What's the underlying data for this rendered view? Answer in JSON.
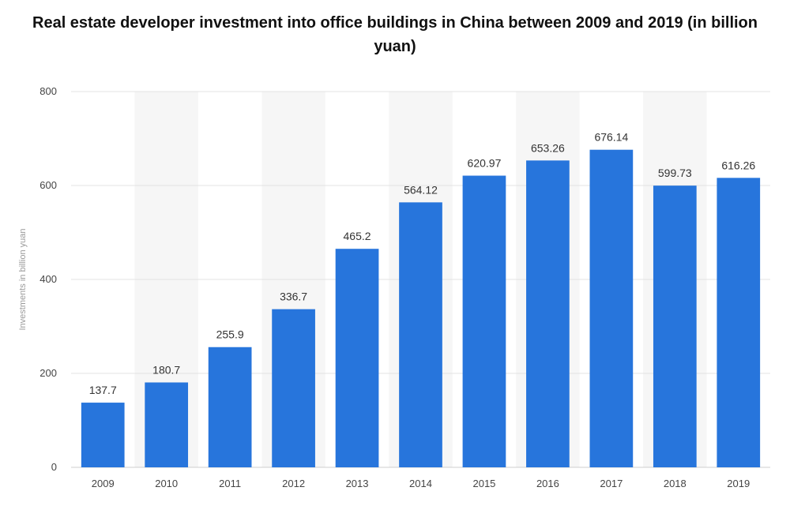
{
  "chart_data": {
    "type": "bar",
    "title": "Real estate developer investment into office buildings in China between 2009 and 2019 (in billion yuan)",
    "xlabel": "",
    "ylabel": "Investments in billion yuan",
    "categories": [
      "2009",
      "2010",
      "2011",
      "2012",
      "2013",
      "2014",
      "2015",
      "2016",
      "2017",
      "2018",
      "2019"
    ],
    "values": [
      137.7,
      180.7,
      255.9,
      336.7,
      465.2,
      564.12,
      620.97,
      653.26,
      676.14,
      599.73,
      616.26
    ],
    "data_labels": [
      "137.7",
      "180.7",
      "255.9",
      "336.7",
      "465.2",
      "564.12",
      "620.97",
      "653.26",
      "676.14",
      "599.73",
      "616.26"
    ],
    "ylim": [
      0,
      800
    ],
    "yticks": [
      0,
      200,
      400,
      600,
      800
    ],
    "grid": true,
    "legend": "none",
    "colors": {
      "bar": "#2775dc",
      "band": "#f6f6f6",
      "grid": "#e3e3e3"
    }
  }
}
